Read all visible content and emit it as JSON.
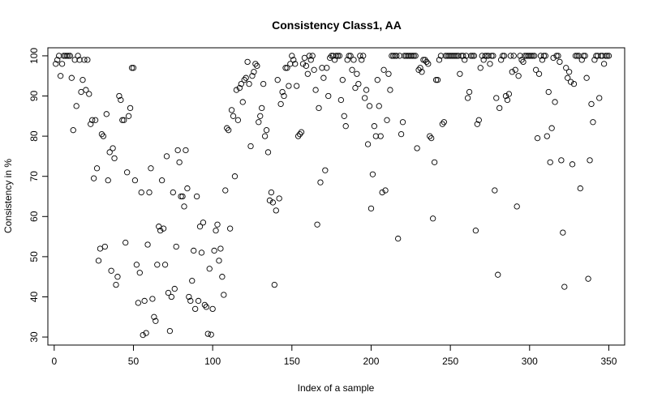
{
  "chart_data": {
    "type": "scatter",
    "title": "Consistency Class1, AA",
    "xlabel": "Index of a sample",
    "ylabel": "Consistency in %",
    "xlim": [
      -4,
      360
    ],
    "ylim": [
      28,
      102
    ],
    "xticks": [
      0,
      50,
      100,
      150,
      200,
      250,
      300,
      350
    ],
    "yticks": [
      30,
      40,
      50,
      60,
      70,
      80,
      90,
      100
    ],
    "grid": false,
    "legend": "none",
    "marker": "open-circle",
    "x": [
      1,
      2,
      3,
      4,
      5,
      6,
      7,
      8,
      9,
      10,
      11,
      12,
      13,
      14,
      15,
      16,
      17,
      18,
      19,
      20,
      21,
      22,
      23,
      24,
      25,
      26,
      27,
      28,
      29,
      30,
      31,
      32,
      33,
      34,
      35,
      36,
      37,
      38,
      39,
      40,
      41,
      42,
      43,
      44,
      45,
      46,
      47,
      48,
      49,
      50,
      51,
      52,
      53,
      54,
      55,
      56,
      57,
      58,
      59,
      60,
      61,
      62,
      63,
      64,
      65,
      66,
      67,
      68,
      69,
      70,
      71,
      72,
      73,
      74,
      75,
      76,
      77,
      78,
      79,
      80,
      81,
      82,
      83,
      84,
      85,
      86,
      87,
      88,
      89,
      90,
      91,
      92,
      93,
      94,
      95,
      96,
      97,
      98,
      99,
      100,
      101,
      102,
      103,
      104,
      105,
      106,
      107,
      108,
      109,
      110,
      111,
      112,
      113,
      114,
      115,
      116,
      117,
      118,
      119,
      120,
      121,
      122,
      123,
      124,
      125,
      126,
      127,
      128,
      129,
      130,
      131,
      132,
      133,
      134,
      135,
      136,
      137,
      138,
      139,
      140,
      141,
      142,
      143,
      144,
      145,
      146,
      147,
      148,
      149,
      150,
      151,
      152,
      153,
      154,
      155,
      156,
      157,
      158,
      159,
      160,
      161,
      162,
      163,
      164,
      165,
      166,
      167,
      168,
      169,
      170,
      171,
      172,
      173,
      174,
      175,
      176,
      177,
      178,
      179,
      180,
      181,
      182,
      183,
      184,
      185,
      186,
      187,
      188,
      189,
      190,
      191,
      192,
      193,
      194,
      195,
      196,
      197,
      198,
      199,
      200,
      201,
      202,
      203,
      204,
      205,
      206,
      207,
      208,
      209,
      210,
      211,
      212,
      213,
      214,
      215,
      216,
      217,
      218,
      219,
      220,
      221,
      222,
      223,
      224,
      225,
      226,
      227,
      228,
      229,
      230,
      231,
      232,
      233,
      234,
      235,
      236,
      237,
      238,
      239,
      240,
      241,
      242,
      243,
      244,
      245,
      246,
      247,
      248,
      249,
      250,
      251,
      252,
      253,
      254,
      255,
      256,
      257,
      258,
      259,
      260,
      261,
      262,
      263,
      264,
      265,
      266,
      267,
      268,
      269,
      270,
      271,
      272,
      273,
      274,
      275,
      276,
      277,
      278,
      279,
      280,
      281,
      282,
      283,
      284,
      285,
      286,
      287,
      288,
      289,
      290,
      291,
      292,
      293,
      294,
      295,
      296,
      297,
      298,
      299,
      300,
      301,
      302,
      303,
      304,
      305,
      306,
      307,
      308,
      309,
      310,
      311,
      312,
      313,
      314,
      315,
      316,
      317,
      318,
      319,
      320,
      321,
      322,
      323,
      324,
      325,
      326,
      327,
      328,
      329,
      330,
      331,
      332,
      333,
      334,
      335,
      336,
      337,
      338,
      339,
      340,
      341,
      342,
      343,
      344,
      345,
      346,
      347,
      348,
      349,
      350
    ],
    "y": [
      98,
      99,
      100,
      95,
      98,
      100,
      100,
      100,
      100,
      100,
      94.5,
      81.5,
      99,
      87.5,
      100,
      99,
      91,
      94,
      99,
      91.5,
      99,
      90.5,
      83,
      84,
      69.5,
      84,
      72,
      49,
      52,
      80.5,
      80,
      52.5,
      85.5,
      69,
      76,
      46.5,
      77,
      74.5,
      43,
      45,
      90,
      89,
      84,
      84,
      53.5,
      71,
      85,
      87,
      97,
      97,
      69,
      48,
      38.5,
      46,
      66,
      30.5,
      39,
      31,
      53,
      66,
      72,
      39.5,
      35,
      34,
      48,
      57.5,
      56.5,
      69,
      57,
      48,
      75,
      41,
      31.5,
      40,
      66,
      42,
      52.5,
      76.5,
      73.5,
      65,
      65,
      62.5,
      76.5,
      67,
      40,
      39,
      44,
      51.5,
      37,
      65,
      39,
      57.5,
      51,
      58.5,
      38,
      37.5,
      30.8,
      47,
      30.6,
      37,
      51.5,
      56.5,
      58,
      49,
      52,
      45,
      40.5,
      66.5,
      82,
      81.5,
      57,
      86.5,
      85,
      70,
      91.5,
      84,
      92,
      93,
      88.5,
      94,
      94.5,
      98.5,
      93,
      77.5,
      95,
      96,
      98,
      97.5,
      83.5,
      85,
      87,
      93,
      80,
      81.5,
      76,
      64,
      66,
      63.5,
      43,
      61.5,
      94,
      64.5,
      88,
      91,
      90,
      97,
      97,
      92.5,
      98,
      100,
      99,
      98,
      92.5,
      80,
      80.5,
      81,
      98,
      99.5,
      97.5,
      95.5,
      100,
      99,
      100,
      96.5,
      91.5,
      58,
      87,
      68.5,
      97,
      94.5,
      71.5,
      97,
      90,
      99.5,
      100,
      100,
      99,
      100,
      100,
      100,
      89,
      94,
      85,
      82.5,
      99,
      100,
      100,
      96.5,
      99,
      92,
      95.5,
      93,
      100,
      99,
      100,
      89.5,
      91.5,
      78,
      87.5,
      62,
      70.5,
      82.5,
      80,
      94,
      87.5,
      80,
      66,
      96.5,
      66.5,
      84,
      95.5,
      91.5,
      100,
      100,
      100,
      100,
      54.5,
      100,
      80.5,
      83.5,
      100,
      100,
      100,
      100,
      100,
      100,
      100,
      100,
      77,
      96.5,
      97,
      96,
      99,
      99,
      98.5,
      98,
      80,
      79.5,
      59.5,
      73.5,
      94,
      94,
      99,
      100,
      83,
      83.5,
      100,
      100,
      100,
      100,
      100,
      100,
      100,
      100,
      100,
      95.5,
      100,
      100,
      99,
      100,
      89.5,
      91,
      100,
      100,
      100,
      56.5,
      83,
      84,
      97,
      100,
      99,
      100,
      100,
      100,
      98,
      100,
      100,
      66.5,
      89.5,
      45.5,
      87,
      99,
      100,
      100,
      90,
      89,
      90.5,
      100,
      96,
      100,
      96.5,
      62.5,
      95,
      100,
      99,
      98.5,
      100,
      100,
      100,
      100,
      100,
      100,
      100,
      96.5,
      79.5,
      95.5,
      100,
      99,
      100,
      100,
      80,
      91,
      73.5,
      82,
      99.5,
      88.5,
      100,
      100,
      98.5,
      74,
      56,
      42.5,
      97,
      94.5,
      96,
      93.5,
      73,
      93,
      100,
      100,
      100,
      67,
      99,
      100,
      100,
      94.5,
      44.5,
      74,
      88,
      83.5,
      99,
      100,
      100,
      89.5,
      100,
      100,
      98,
      100,
      100,
      100
    ]
  }
}
